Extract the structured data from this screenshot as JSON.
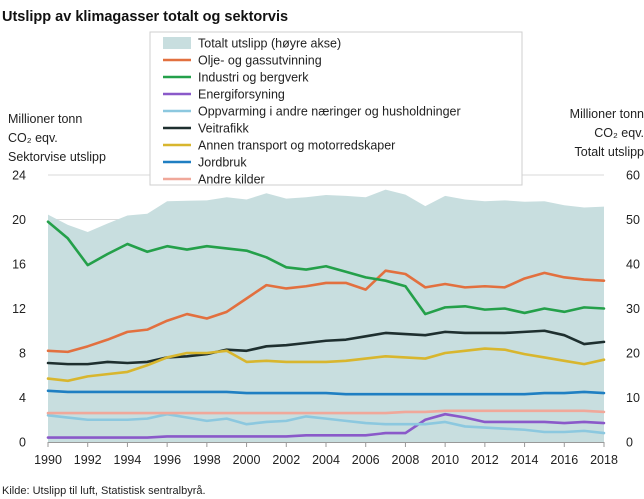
{
  "chart_data": {
    "type": "line",
    "title": "Utslipp av klimagasser totalt og sektorvis",
    "source": "Kilde: Utslipp til luft, Statistisk sentralbyrå.",
    "ylabel_left": [
      "Millioner tonn",
      "CO₂ eqv.",
      "Sektorvise utslipp"
    ],
    "ylabel_right": [
      "Millioner tonn",
      "CO₂ eqv.",
      "Totalt utslipp"
    ],
    "ylim_left": [
      0,
      24
    ],
    "ylim_right": [
      0,
      60
    ],
    "yticks_left": [
      0,
      4,
      8,
      12,
      16,
      20,
      24
    ],
    "yticks_right": [
      0,
      10,
      20,
      30,
      40,
      50,
      60
    ],
    "xlim": [
      1990,
      2018
    ],
    "xticks": [
      1990,
      1992,
      1994,
      1996,
      1998,
      2000,
      2002,
      2004,
      2006,
      2008,
      2010,
      2012,
      2014,
      2016,
      2018
    ],
    "grid": true,
    "legend_position": "top-center",
    "x": [
      1990,
      1991,
      1992,
      1993,
      1994,
      1995,
      1996,
      1997,
      1998,
      1999,
      2000,
      2001,
      2002,
      2003,
      2004,
      2005,
      2006,
      2007,
      2008,
      2009,
      2010,
      2011,
      2012,
      2013,
      2014,
      2015,
      2016,
      2017,
      2018
    ],
    "area": {
      "name": "Totalt utslipp (høyre akse)",
      "color": "#c8dedf",
      "axis": "right",
      "values": [
        51.1,
        48.8,
        47.2,
        49.1,
        50.9,
        51.3,
        54.1,
        54.2,
        54.3,
        55.0,
        54.5,
        55.9,
        54.7,
        55.0,
        55.5,
        55.3,
        55.0,
        56.7,
        55.6,
        53.0,
        55.3,
        54.5,
        54.1,
        54.3,
        54.0,
        54.1,
        53.2,
        52.7,
        52.9
      ]
    },
    "series": [
      {
        "name": "Olje- og gassutvinning",
        "color": "#e2703f",
        "axis": "left",
        "values": [
          8.2,
          8.1,
          8.6,
          9.2,
          9.9,
          10.1,
          10.9,
          11.5,
          11.1,
          11.7,
          12.9,
          14.1,
          13.8,
          14.0,
          14.3,
          14.3,
          13.7,
          15.4,
          15.1,
          13.9,
          14.2,
          13.9,
          14.0,
          13.9,
          14.7,
          15.2,
          14.8,
          14.6,
          14.5
        ]
      },
      {
        "name": "Industri og bergverk",
        "color": "#24a04a",
        "axis": "left",
        "values": [
          19.8,
          18.3,
          15.9,
          16.9,
          17.8,
          17.1,
          17.6,
          17.3,
          17.6,
          17.4,
          17.2,
          16.6,
          15.7,
          15.5,
          15.8,
          15.3,
          14.8,
          14.5,
          14.0,
          11.5,
          12.1,
          12.2,
          11.9,
          12.0,
          11.6,
          12.0,
          11.7,
          12.1,
          12.0
        ]
      },
      {
        "name": "Energiforsyning",
        "color": "#8a59c9",
        "axis": "left",
        "values": [
          0.4,
          0.4,
          0.4,
          0.4,
          0.4,
          0.4,
          0.5,
          0.5,
          0.5,
          0.5,
          0.5,
          0.5,
          0.5,
          0.6,
          0.6,
          0.6,
          0.6,
          0.8,
          0.8,
          2.0,
          2.5,
          2.2,
          1.8,
          1.8,
          1.8,
          1.8,
          1.7,
          1.8,
          1.7
        ]
      },
      {
        "name": "Oppvarming i andre næringer og husholdninger",
        "color": "#8cc8df",
        "axis": "left",
        "values": [
          2.4,
          2.2,
          2.0,
          2.0,
          2.0,
          2.1,
          2.5,
          2.2,
          1.9,
          2.1,
          1.6,
          1.8,
          1.9,
          2.3,
          2.1,
          1.9,
          1.7,
          1.6,
          1.6,
          1.6,
          1.8,
          1.4,
          1.3,
          1.2,
          1.1,
          0.9,
          0.9,
          1.0,
          0.8
        ]
      },
      {
        "name": "Veitrafikk",
        "color": "#1e2f2f",
        "axis": "left",
        "values": [
          7.1,
          7.0,
          7.0,
          7.2,
          7.1,
          7.2,
          7.6,
          7.7,
          7.9,
          8.3,
          8.2,
          8.6,
          8.7,
          8.9,
          9.1,
          9.2,
          9.5,
          9.8,
          9.7,
          9.6,
          9.9,
          9.8,
          9.8,
          9.8,
          9.9,
          10.0,
          9.6,
          8.8,
          9.0
        ]
      },
      {
        "name": "Annen transport og motorredskaper",
        "color": "#d8b62e",
        "axis": "left",
        "values": [
          5.7,
          5.5,
          5.9,
          6.1,
          6.3,
          6.9,
          7.6,
          8.0,
          8.0,
          8.2,
          7.2,
          7.3,
          7.2,
          7.2,
          7.2,
          7.3,
          7.5,
          7.7,
          7.6,
          7.5,
          8.0,
          8.2,
          8.4,
          8.3,
          7.9,
          7.6,
          7.3,
          7.0,
          7.4
        ]
      },
      {
        "name": "Jordbruk",
        "color": "#1f7fc2",
        "axis": "left",
        "values": [
          4.6,
          4.5,
          4.5,
          4.5,
          4.5,
          4.5,
          4.5,
          4.5,
          4.5,
          4.5,
          4.4,
          4.4,
          4.4,
          4.4,
          4.4,
          4.3,
          4.3,
          4.3,
          4.3,
          4.3,
          4.3,
          4.3,
          4.3,
          4.3,
          4.3,
          4.4,
          4.4,
          4.5,
          4.4
        ]
      },
      {
        "name": "Andre kilder",
        "color": "#f0a89a",
        "axis": "left",
        "values": [
          2.6,
          2.6,
          2.6,
          2.6,
          2.6,
          2.6,
          2.6,
          2.6,
          2.6,
          2.6,
          2.6,
          2.6,
          2.6,
          2.6,
          2.6,
          2.6,
          2.6,
          2.6,
          2.7,
          2.7,
          2.8,
          2.8,
          2.8,
          2.8,
          2.8,
          2.8,
          2.8,
          2.8,
          2.7
        ]
      }
    ]
  }
}
